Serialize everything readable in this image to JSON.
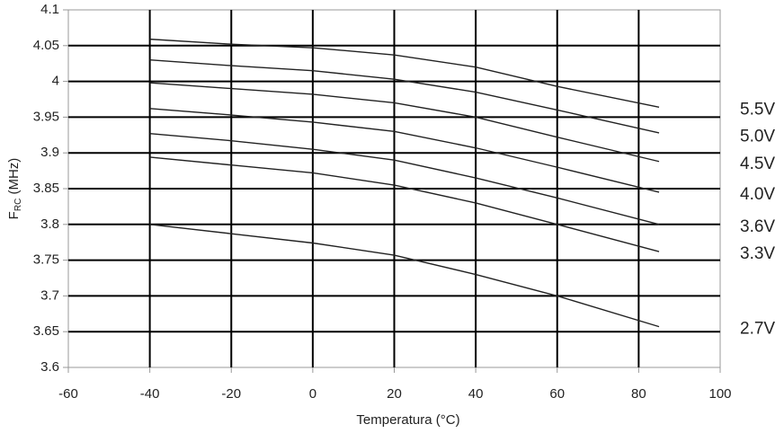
{
  "chart_data": {
    "type": "line",
    "x_label": "Temperatura (°C)",
    "y_label": {
      "main": "F",
      "sub": "RC",
      "unit": " (MHz)"
    },
    "x": [
      -40,
      -20,
      0,
      20,
      40,
      60,
      85
    ],
    "series": [
      {
        "name": "5.5V",
        "color": "#222222",
        "values": [
          4.059,
          4.052,
          4.047,
          4.037,
          4.02,
          3.993,
          3.964
        ]
      },
      {
        "name": "5.0V",
        "color": "#222222",
        "values": [
          4.03,
          4.022,
          4.015,
          4.003,
          3.985,
          3.96,
          3.928
        ]
      },
      {
        "name": "4.5V",
        "color": "#222222",
        "values": [
          3.998,
          3.99,
          3.982,
          3.97,
          3.95,
          3.922,
          3.888
        ]
      },
      {
        "name": "4.0V",
        "color": "#222222",
        "values": [
          3.962,
          3.953,
          3.943,
          3.93,
          3.907,
          3.88,
          3.845
        ]
      },
      {
        "name": "3.6V",
        "color": "#222222",
        "values": [
          3.927,
          3.917,
          3.905,
          3.89,
          3.865,
          3.837,
          3.8
        ]
      },
      {
        "name": "3.3V",
        "color": "#222222",
        "values": [
          3.894,
          3.883,
          3.872,
          3.855,
          3.83,
          3.8,
          3.762
        ]
      },
      {
        "name": "2.7V",
        "color": "#222222",
        "values": [
          3.8,
          3.787,
          3.774,
          3.757,
          3.73,
          3.7,
          3.657
        ]
      }
    ],
    "xlim": [
      -60,
      100
    ],
    "xticks": [
      -60,
      -40,
      -20,
      0,
      20,
      40,
      60,
      80,
      100
    ],
    "ylim": [
      3.6,
      4.1
    ],
    "yticks": [
      3.6,
      3.65,
      3.7,
      3.75,
      3.8,
      3.85,
      3.9,
      3.95,
      4,
      4.05,
      4.1
    ],
    "grid": true
  }
}
